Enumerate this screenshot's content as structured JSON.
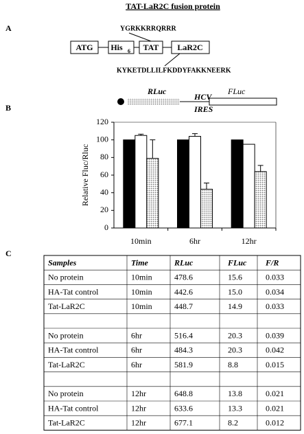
{
  "panel_labels": [
    "A",
    "B",
    "C"
  ],
  "diagram": {
    "title": "TAT-LaR2C fusion protein",
    "boxes": [
      {
        "label": "ATG"
      },
      {
        "label": "His",
        "sub": "6"
      },
      {
        "label": "TAT"
      },
      {
        "label": "LaR2C"
      }
    ],
    "tat_sequence": "YGRKKRRQRRR",
    "lar2c_sequence": "KYKETDLLILFKDDYFAKKNEERK"
  },
  "construct": {
    "rluc": "RLuc",
    "hcv": "HCV",
    "ires": "IRES",
    "fluc": "FLuc"
  },
  "chart_data": {
    "type": "bar",
    "ylabel": "Relative Fluc/Rluc",
    "categories": [
      "10min",
      "6hr",
      "12hr"
    ],
    "series": [
      {
        "color": "#000000",
        "values": [
          100,
          100,
          100
        ]
      },
      {
        "color": "#ffffff",
        "values": [
          105,
          104,
          95
        ],
        "errors": [
          1.5,
          3,
          null
        ]
      },
      {
        "color": "#b8b8b8",
        "values": [
          79,
          44,
          64
        ],
        "errors": [
          21,
          7,
          7
        ]
      }
    ],
    "ylim": [
      0,
      120
    ],
    "yticks": [
      0,
      20,
      40,
      60,
      80,
      100,
      120
    ]
  },
  "table": {
    "header": [
      "Samples",
      "Time",
      "RLuc",
      "FLuc",
      "F/R"
    ],
    "groups": [
      [
        [
          "No protein",
          "10min",
          "478.6",
          "15.6",
          "0.033"
        ],
        [
          "HA-Tat control",
          "10min",
          "442.6",
          "15.0",
          "0.034"
        ],
        [
          "Tat-LaR2C",
          "10min",
          "448.7",
          "14.9",
          "0.033"
        ]
      ],
      [
        [
          "No protein",
          "6hr",
          "516.4",
          "20.3",
          "0.039"
        ],
        [
          "HA-Tat control",
          "6hr",
          "484.3",
          "20.3",
          "0.042"
        ],
        [
          "Tat-LaR2C",
          "6hr",
          "581.9",
          "8.8",
          "0.015"
        ]
      ],
      [
        [
          "No protein",
          "12hr",
          "648.8",
          "13.8",
          "0.021"
        ],
        [
          "HA-Tat control",
          "12hr",
          "633.6",
          "13.3",
          "0.021"
        ],
        [
          "Tat-LaR2C",
          "12hr",
          "677.1",
          "8.2",
          "0.012"
        ]
      ]
    ]
  }
}
